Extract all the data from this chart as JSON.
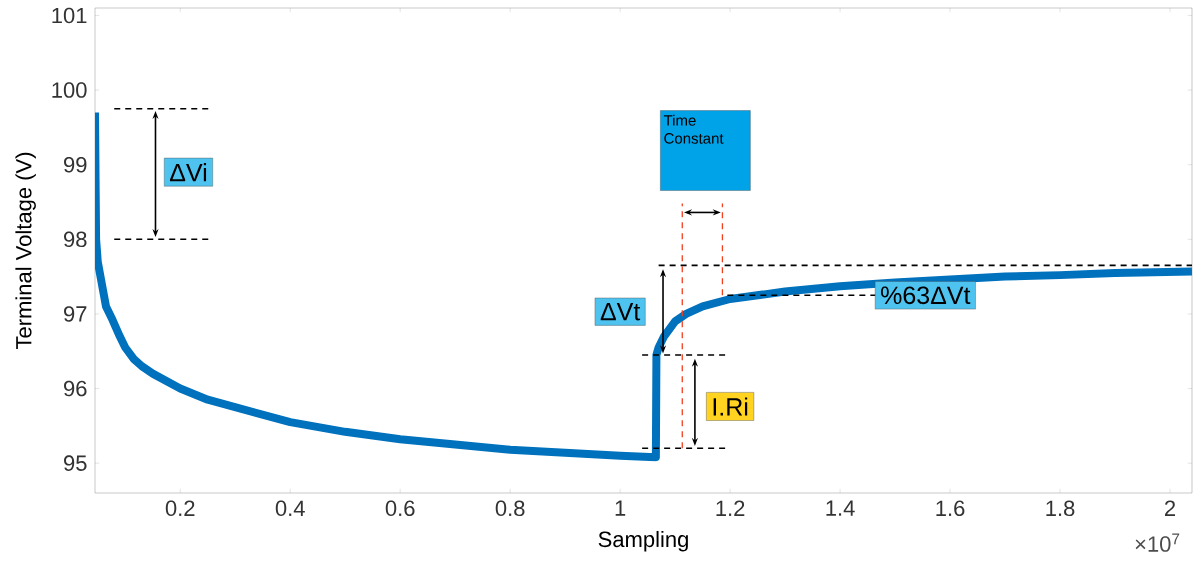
{
  "chart_data": {
    "type": "line",
    "xlabel": "Sampling",
    "ylabel": "Terminal Voltage (V)",
    "xlim": [
      0.045,
      2.04
    ],
    "ylim": [
      94.6,
      101.1
    ],
    "xticks": [
      0.2,
      0.4,
      0.6,
      0.8,
      1,
      1.2,
      1.4,
      1.6,
      1.8,
      2
    ],
    "yticks": [
      95,
      96,
      97,
      98,
      99,
      100,
      101
    ],
    "marker": "none",
    "line_style": "solid",
    "series": [
      {
        "color": "#0072bd",
        "x": [
          0.045,
          0.046,
          0.047,
          0.05,
          0.055,
          0.06,
          0.065,
          0.075,
          0.09,
          0.1,
          0.115,
          0.13,
          0.15,
          0.2,
          0.25,
          0.3,
          0.35,
          0.4,
          0.5,
          0.6,
          0.7,
          0.8,
          0.9,
          1.0,
          1.065,
          1.066,
          1.07,
          1.08,
          1.1,
          1.12,
          1.15,
          1.2,
          1.3,
          1.4,
          1.5,
          1.6,
          1.7,
          1.8,
          1.9,
          2.04
        ],
        "values": [
          99.7,
          98.8,
          98.0,
          97.7,
          97.5,
          97.3,
          97.1,
          96.95,
          96.7,
          96.55,
          96.4,
          96.3,
          96.2,
          96.0,
          95.85,
          95.75,
          95.65,
          95.55,
          95.42,
          95.32,
          95.25,
          95.18,
          95.14,
          95.1,
          95.08,
          96.45,
          96.55,
          96.7,
          96.9,
          97.0,
          97.1,
          97.2,
          97.3,
          97.37,
          97.42,
          97.46,
          97.5,
          97.52,
          97.55,
          97.57
        ]
      }
    ],
    "ref_lines": [
      {
        "axis": "y",
        "value": 99.75,
        "color": "#000000",
        "line_style": "dashed"
      },
      {
        "axis": "y",
        "value": 98.0,
        "color": "#000000",
        "line_style": "dashed"
      },
      {
        "axis": "y",
        "value": 97.65,
        "color": "#000000",
        "line_style": "dashed"
      },
      {
        "axis": "y",
        "value": 96.45,
        "color": "#000000",
        "line_style": "dashed"
      },
      {
        "axis": "y",
        "value": 95.2,
        "color": "#000000",
        "line_style": "dashed"
      },
      {
        "axis": "y",
        "value": 97.25,
        "label": "%63ΔVt",
        "color": "#000000",
        "line_style": "dashed"
      },
      {
        "axis": "x",
        "value": 1.113,
        "color": "#f0401e",
        "line_style": "dashed"
      },
      {
        "axis": "x",
        "value": 1.186,
        "color": "#f0401e",
        "line_style": "dashed"
      }
    ],
    "annotations": [
      "ΔVi",
      "ΔVt",
      "I.Ri",
      "Time Constant",
      "×10$^{7}$"
    ]
  }
}
